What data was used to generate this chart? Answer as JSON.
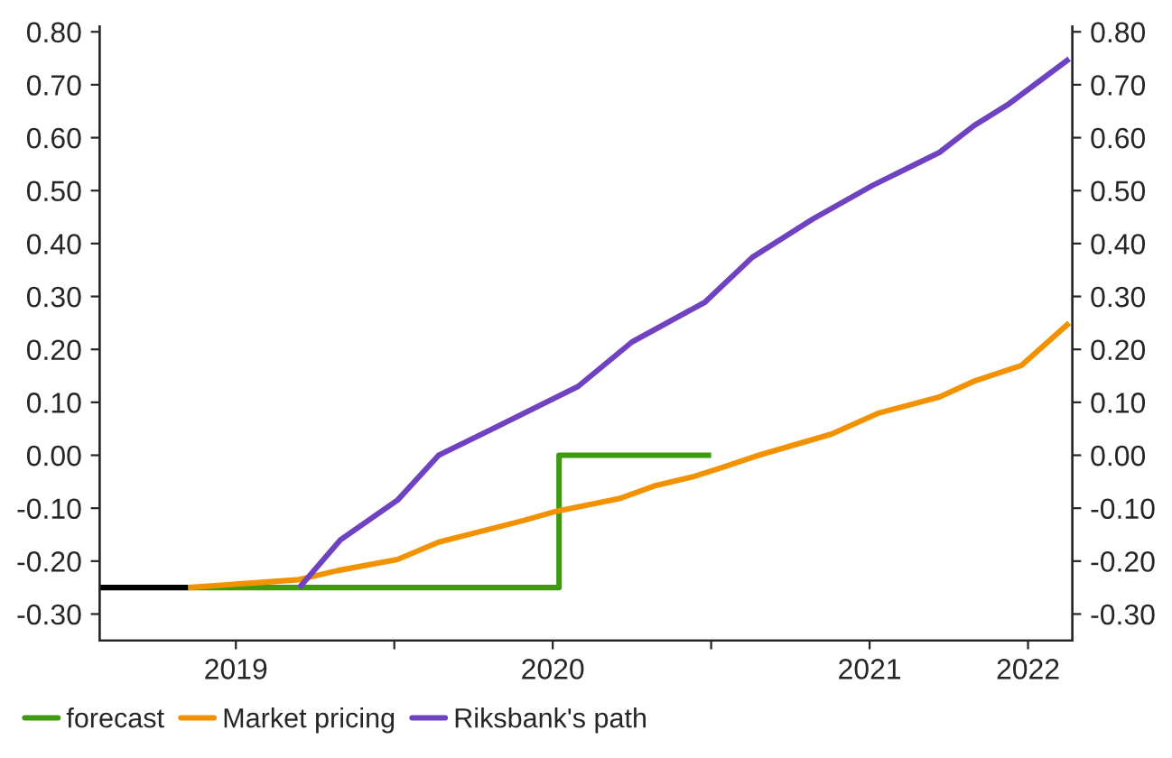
{
  "chart_data": {
    "type": "line",
    "series": [
      {
        "color": "#000000",
        "x": [
          2019.07,
          2019.35
        ],
        "values": [
          -0.25,
          -0.25
        ]
      },
      {
        "name": "forecast",
        "color": "#3f9a0f",
        "x": [
          2019.35,
          2020.52,
          2020.52,
          2021.0
        ],
        "values": [
          -0.25,
          -0.25,
          0.0,
          0.0
        ]
      },
      {
        "name": "Market pricing",
        "color": "#f39200",
        "x": [
          2019.35,
          2019.7,
          2019.82,
          2020.01,
          2020.14,
          2020.41,
          2020.51,
          2020.71,
          2020.82,
          2020.94,
          2021.03,
          2021.15,
          2021.38,
          2021.53,
          2021.72,
          2021.83,
          2021.98,
          2022.13
        ],
        "values": [
          -0.25,
          -0.235,
          -0.218,
          -0.197,
          -0.164,
          -0.123,
          -0.106,
          -0.082,
          -0.058,
          -0.041,
          -0.024,
          0.0,
          0.04,
          0.08,
          0.11,
          0.14,
          0.17,
          0.25
        ]
      },
      {
        "name": "Riksbank's path",
        "color": "#6f42c1",
        "x": [
          2019.7,
          2019.83,
          2020.01,
          2020.14,
          2020.31,
          2020.58,
          2020.75,
          2020.98,
          2021.13,
          2021.32,
          2021.51,
          2021.72,
          2021.83,
          2021.94,
          2022.13
        ],
        "values": [
          -0.25,
          -0.16,
          -0.085,
          0.0,
          0.05,
          0.13,
          0.214,
          0.289,
          0.374,
          0.446,
          0.51,
          0.572,
          0.623,
          0.664,
          0.749
        ]
      }
    ],
    "xlim": [
      2019.07,
      2022.14
    ],
    "xticks": [
      {
        "value": 2019.5,
        "label": "2019"
      },
      {
        "value": 2020,
        "label": null
      },
      {
        "value": 2020.5,
        "label": "2020"
      },
      {
        "value": 2021,
        "label": null
      },
      {
        "value": 2021.5,
        "label": "2021"
      },
      {
        "value": 2022,
        "label": "2022"
      }
    ],
    "ylim": [
      -0.35,
      0.81
    ],
    "yticks": [
      {
        "value": -0.3,
        "label": "-0.30"
      },
      {
        "value": -0.2,
        "label": "-0.20"
      },
      {
        "value": -0.1,
        "label": "-0.10"
      },
      {
        "value": 0,
        "label": "0.00"
      },
      {
        "value": 0.1,
        "label": "0.10"
      },
      {
        "value": 0.2,
        "label": "0.20"
      },
      {
        "value": 0.3,
        "label": "0.30"
      },
      {
        "value": 0.4,
        "label": "0.40"
      },
      {
        "value": 0.5,
        "label": "0.50"
      },
      {
        "value": 0.6,
        "label": "0.60"
      },
      {
        "value": 0.7,
        "label": "0.70"
      },
      {
        "value": 0.8,
        "label": "0.80"
      }
    ],
    "y2lim": [
      -0.35,
      0.81
    ],
    "y2ticks": [
      {
        "value": -0.3,
        "label": "-0.30"
      },
      {
        "value": -0.2,
        "label": "-0.20"
      },
      {
        "value": -0.1,
        "label": "-0.10"
      },
      {
        "value": 0,
        "label": "0.00"
      },
      {
        "value": 0.1,
        "label": "0.10"
      },
      {
        "value": 0.2,
        "label": "0.20"
      },
      {
        "value": 0.3,
        "label": "0.30"
      },
      {
        "value": 0.4,
        "label": "0.40"
      },
      {
        "value": 0.5,
        "label": "0.50"
      },
      {
        "value": 0.6,
        "label": "0.60"
      },
      {
        "value": 0.7,
        "label": "0.70"
      },
      {
        "value": 0.8,
        "label": "0.80"
      }
    ],
    "grid": false,
    "legend": "bottom left",
    "line_style": "solid"
  }
}
